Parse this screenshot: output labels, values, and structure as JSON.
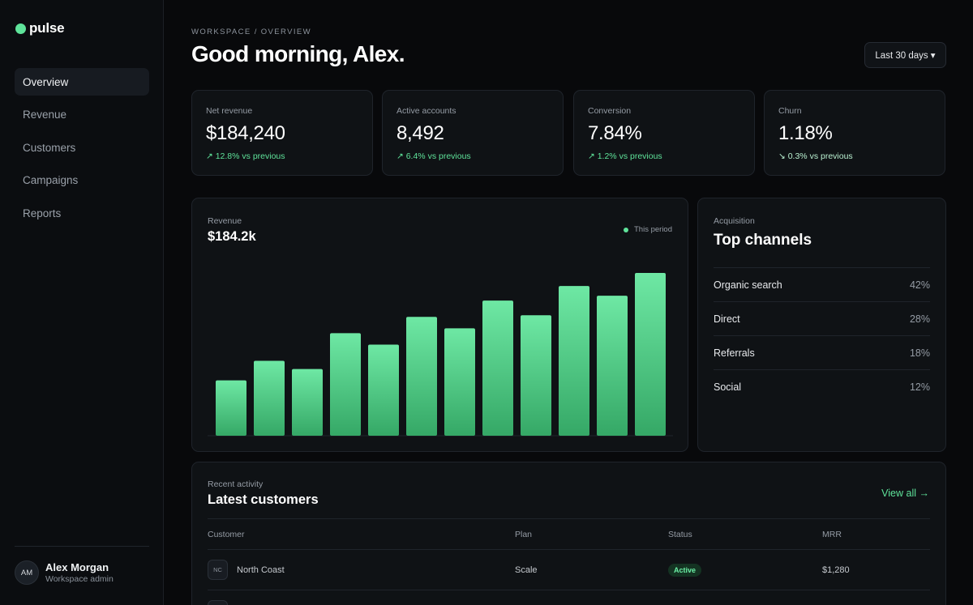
{
  "app": {
    "name": "pulse"
  },
  "sidebar": {
    "items": [
      {
        "label": "Overview",
        "active": true
      },
      {
        "label": "Revenue",
        "active": false
      },
      {
        "label": "Customers",
        "active": false
      },
      {
        "label": "Campaigns",
        "active": false
      },
      {
        "label": "Reports",
        "active": false
      }
    ],
    "user": {
      "initials": "AM",
      "name": "Alex Morgan",
      "role": "Workspace admin"
    }
  },
  "header": {
    "breadcrumb": "WORKSPACE / OVERVIEW",
    "greeting": "Good morning, Alex.",
    "range_label": "Last 30 days ▾"
  },
  "kpis": [
    {
      "label": "Net revenue",
      "value": "$184,240",
      "delta": "↗ 12.8% vs previous",
      "direction": "up"
    },
    {
      "label": "Active accounts",
      "value": "8,492",
      "delta": "↗ 6.4% vs previous",
      "direction": "up"
    },
    {
      "label": "Conversion",
      "value": "7.84%",
      "delta": "↗ 1.2% vs previous",
      "direction": "up"
    },
    {
      "label": "Churn",
      "value": "1.18%",
      "delta": "↘ 0.3% vs previous",
      "direction": "down"
    }
  ],
  "revenue": {
    "label": "Revenue",
    "value": "$184.2k",
    "legend": "This period"
  },
  "chart_data": {
    "type": "bar",
    "series": [
      {
        "name": "This period",
        "values": [
          34,
          46,
          41,
          63,
          56,
          73,
          66,
          83,
          74,
          92,
          86,
          100
        ]
      }
    ],
    "ylim": [
      0,
      100
    ],
    "grid": false,
    "legend_position": "top-right",
    "color": "#5fe39a"
  },
  "channels": {
    "label": "Acquisition",
    "title": "Top channels",
    "rows": [
      {
        "name": "Organic search",
        "pct": "42%"
      },
      {
        "name": "Direct",
        "pct": "28%"
      },
      {
        "name": "Referrals",
        "pct": "18%"
      },
      {
        "name": "Social",
        "pct": "12%"
      }
    ]
  },
  "customers": {
    "label": "Recent activity",
    "title": "Latest customers",
    "view_all": "View all →",
    "columns": [
      "Customer",
      "Plan",
      "Status",
      "MRR"
    ],
    "rows": [
      {
        "initials": "NC",
        "name": "North Coast",
        "plan": "Scale",
        "status": "Active",
        "mrr": "$1,280"
      },
      {
        "initials": "",
        "name": "",
        "plan": "",
        "status": "",
        "mrr": ""
      }
    ]
  },
  "colors": {
    "accent": "#5fe39a",
    "background": "#08090b",
    "card": "#0f1215",
    "border": "#1f242b"
  }
}
